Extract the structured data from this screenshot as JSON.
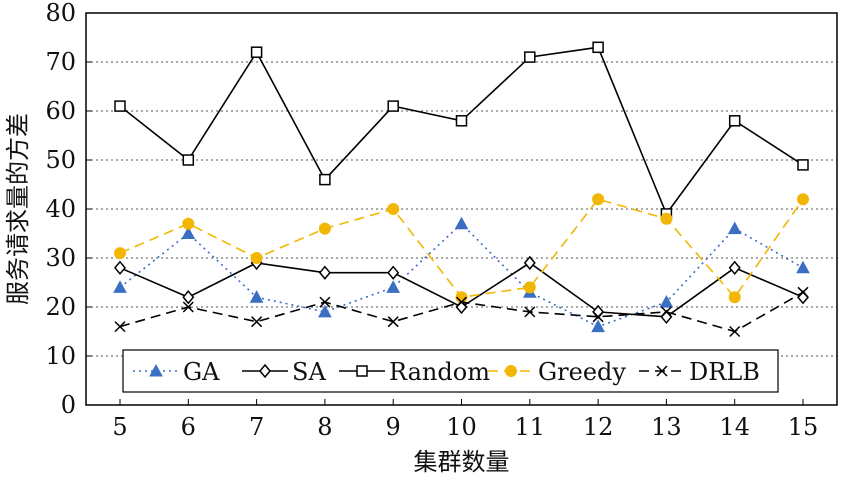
{
  "chart_data": {
    "type": "line",
    "xlabel": "集群数量",
    "ylabel": "服务请求量的方差",
    "x": [
      5,
      6,
      7,
      8,
      9,
      10,
      11,
      12,
      13,
      14,
      15
    ],
    "xlim": [
      5,
      15
    ],
    "ylim": [
      0,
      80
    ],
    "yticks": [
      0,
      10,
      20,
      30,
      40,
      50,
      60,
      70,
      80
    ],
    "grid": "horizontal dotted",
    "legend_placement": "bottom, inside plot",
    "series": [
      {
        "name": "GA",
        "color": "#3a6fc4",
        "dash": "dotted",
        "marker": "triangle",
        "values": [
          24,
          35,
          22,
          19,
          24,
          37,
          23,
          16,
          21,
          36,
          28
        ]
      },
      {
        "name": "SA",
        "color": "#000000",
        "dash": "solid",
        "marker": "diamond",
        "values": [
          28,
          22,
          29,
          27,
          27,
          20,
          29,
          19,
          18,
          28,
          22
        ]
      },
      {
        "name": "Random",
        "color": "#000000",
        "dash": "solid",
        "marker": "square",
        "values": [
          61,
          50,
          72,
          46,
          61,
          58,
          71,
          73,
          39,
          58,
          49
        ]
      },
      {
        "name": "Greedy",
        "color": "#f2b705",
        "dash": "dashed",
        "marker": "circle",
        "values": [
          31,
          37,
          30,
          36,
          40,
          22,
          24,
          42,
          38,
          22,
          42
        ]
      },
      {
        "name": "DRLB",
        "color": "#000000",
        "dash": "dashed",
        "marker": "x",
        "values": [
          16,
          20,
          17,
          21,
          17,
          21,
          19,
          18,
          19,
          15,
          23
        ]
      }
    ]
  }
}
